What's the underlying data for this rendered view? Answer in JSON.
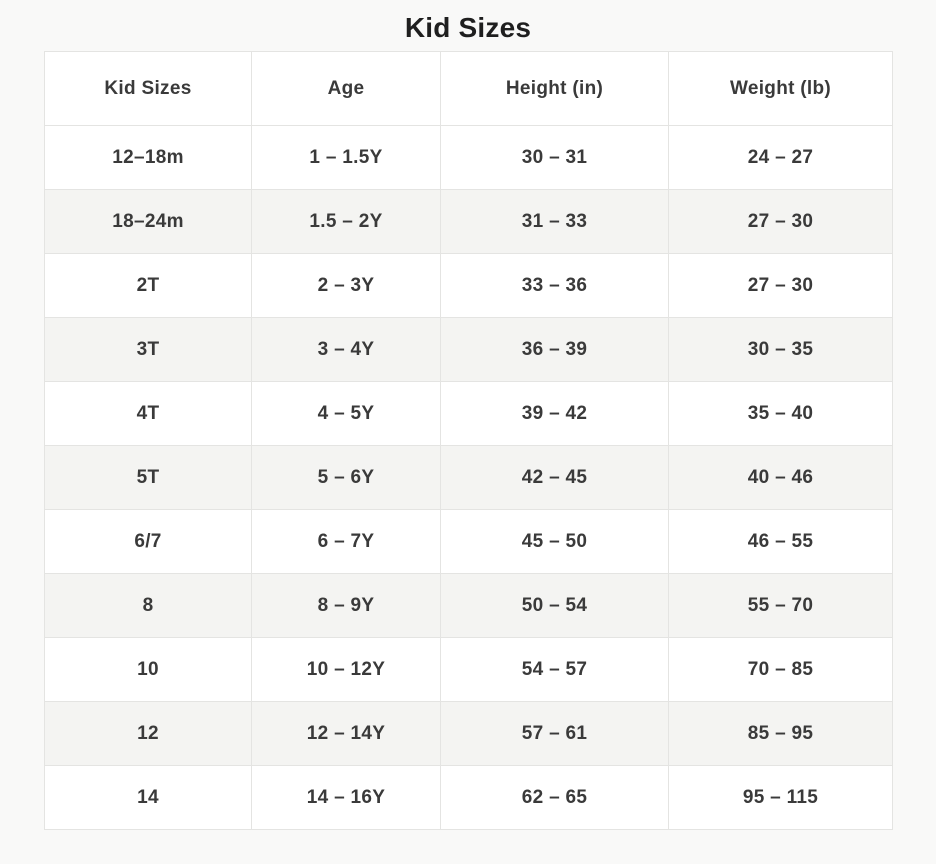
{
  "page": {
    "title": "Kid Sizes"
  },
  "colors": {
    "page_background": "#f9f9f8",
    "row_stripe": "#f4f4f2",
    "row_white": "#ffffff",
    "border": "#e4e4e2",
    "cell_text": "#3a3a3a",
    "title_text": "#1f1f1f"
  },
  "chart_data": {
    "type": "table",
    "title": "Kid Sizes",
    "columns": [
      "Kid Sizes",
      "Age",
      "Height (in)",
      "Weight (lb)"
    ],
    "rows": [
      [
        "12–18m",
        "1 – 1.5Y",
        "30 – 31",
        "24 – 27"
      ],
      [
        "18–24m",
        "1.5 – 2Y",
        "31 – 33",
        "27 – 30"
      ],
      [
        "2T",
        "2 – 3Y",
        "33 – 36",
        "27 – 30"
      ],
      [
        "3T",
        "3 – 4Y",
        "36 – 39",
        "30 – 35"
      ],
      [
        "4T",
        "4 – 5Y",
        "39 – 42",
        "35 – 40"
      ],
      [
        "5T",
        "5 – 6Y",
        "42 – 45",
        "40 – 46"
      ],
      [
        "6/7",
        "6 – 7Y",
        "45 – 50",
        "46 – 55"
      ],
      [
        "8",
        "8 – 9Y",
        "50 – 54",
        "55 – 70"
      ],
      [
        "10",
        "10 – 12Y",
        "54 – 57",
        "70 – 85"
      ],
      [
        "12",
        "12 – 14Y",
        "57 – 61",
        "85 – 95"
      ],
      [
        "14",
        "14 – 16Y",
        "62 – 65",
        "95 – 115"
      ]
    ],
    "layout": {
      "striped": true,
      "first_data_row_background": "white",
      "header_background": "white",
      "grid": true
    }
  }
}
